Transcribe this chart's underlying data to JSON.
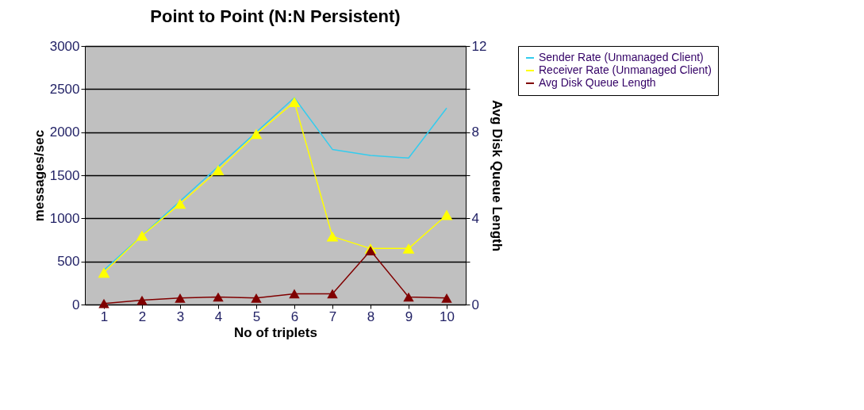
{
  "chart_data": {
    "type": "line",
    "title": "Point to Point (N:N Persistent)",
    "xlabel": "No of triplets",
    "ylabel": "messages/sec",
    "y2label": "Avg Disk Queue Length",
    "categories": [
      "1",
      "2",
      "3",
      "4",
      "5",
      "6",
      "7",
      "8",
      "9",
      "10"
    ],
    "series": [
      {
        "name": "Sender Rate (Unmanaged Client)",
        "color": "#33ccee",
        "marker": "none",
        "values": [
          400,
          800,
          1200,
          1600,
          2000,
          2400,
          1800,
          1730,
          1700,
          2280
        ]
      },
      {
        "name": "Receiver Rate (Unmanaged Client)",
        "color": "#ffff00",
        "marker": "triangle",
        "values": [
          370,
          800,
          1170,
          1560,
          1980,
          2350,
          790,
          650,
          650,
          1040
        ]
      },
      {
        "name": "Avg Disk Queue Length",
        "color": "#800000",
        "marker": "triangle",
        "axis": "y2",
        "values": [
          0.05,
          0.2,
          0.3,
          0.35,
          0.3,
          0.5,
          0.5,
          2.5,
          0.35,
          0.3
        ]
      }
    ],
    "ylim": [
      0,
      3000
    ],
    "yticks": [
      0,
      500,
      1000,
      1500,
      2000,
      2500,
      3000
    ],
    "y2lim": [
      0,
      12
    ],
    "y2ticks": [
      0,
      {
        "value": 2,
        "label": null
      },
      4,
      {
        "value": 6,
        "label": null
      },
      8,
      {
        "value": 10,
        "label": null
      },
      12
    ],
    "grid": "y",
    "legend": "right"
  }
}
